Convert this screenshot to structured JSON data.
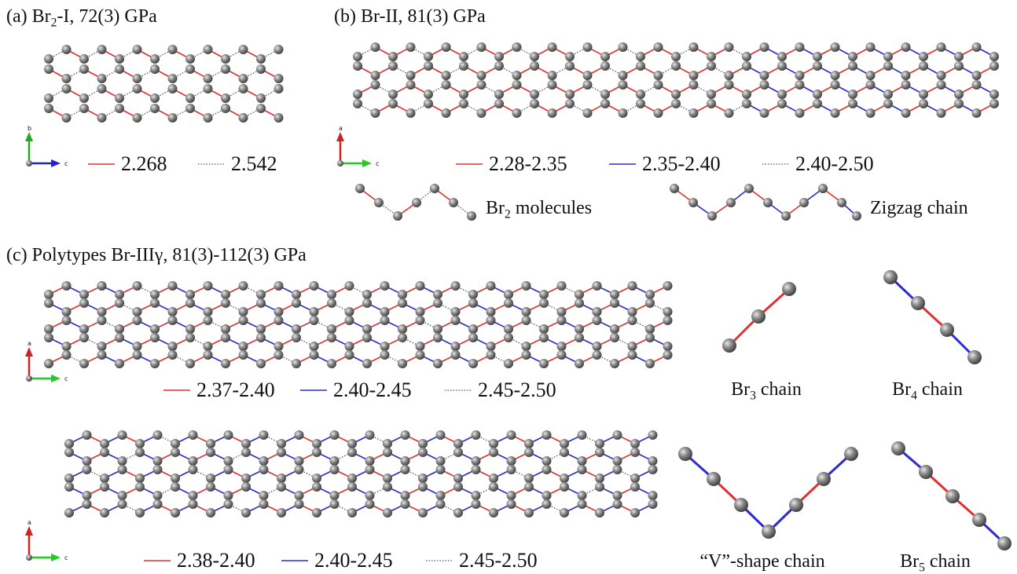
{
  "panel_a": {
    "title": {
      "before": "(a) Br",
      "sub": "2",
      "after": "-I, 72(3) GPa"
    },
    "axis_vertical": "b",
    "axis_horizontal": "c",
    "legend": [
      "2.268",
      "2.542"
    ]
  },
  "panel_b": {
    "title": "(b) Br-II, 81(3) GPa",
    "axis_vertical": "a",
    "axis_horizontal": "c",
    "legend": [
      "2.28-2.35",
      "2.35-2.40",
      "2.40-2.50"
    ],
    "motifs": [
      {
        "before": "Br",
        "sub": "2",
        "after": " molecules"
      },
      "Zigzag chain"
    ]
  },
  "panel_c": {
    "title": "(c) Polytypes Br-IIIγ, 81(3)-112(3) GPa",
    "top": {
      "axis_vertical": "a",
      "axis_horizontal": "c",
      "legend": [
        "2.37-2.40",
        "2.40-2.45",
        "2.45-2.50"
      ]
    },
    "bottom": {
      "axis_vertical": "a",
      "axis_horizontal": "c",
      "legend": [
        "2.38-2.40",
        "2.40-2.45",
        "2.45-2.50"
      ]
    },
    "chains": [
      {
        "before": "Br",
        "sub": "3",
        "after": " chain"
      },
      {
        "before": "Br",
        "sub": "4",
        "after": " chain"
      },
      "“V”-shape chain",
      {
        "before": "Br",
        "sub": "5",
        "after": " chain"
      }
    ]
  }
}
